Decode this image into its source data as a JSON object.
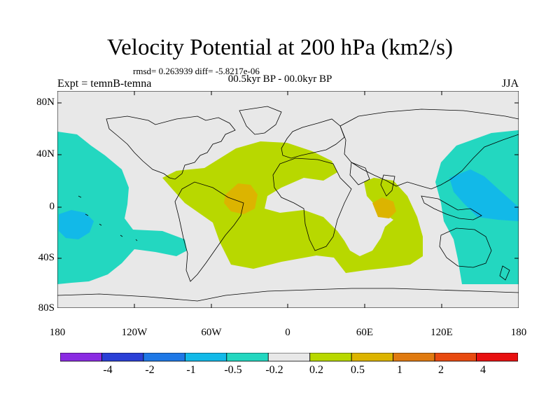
{
  "title": "Velocity Potential at 200 hPa (km2/s)",
  "stats": "rmsd= 0.263939 diff= -5.8217e-06",
  "experiment": "Expt = temnB-temna",
  "period": "00.5kyr BP - 00.0kyr BP",
  "season": "JJA",
  "lat_labels": [
    "80N",
    "40N",
    "0",
    "40S",
    "80S"
  ],
  "lon_labels": [
    "180",
    "120W",
    "60W",
    "0",
    "60E",
    "120E",
    "180"
  ],
  "colorbar": {
    "levels": [
      "-4",
      "-2",
      "-1",
      "-0.5",
      "-0.2",
      "0.2",
      "0.5",
      "1",
      "2",
      "4"
    ],
    "colors": [
      "#8a2be2",
      "#2a3fd6",
      "#1e78e6",
      "#12b9e8",
      "#23d7c0",
      "#e8e8e8",
      "#b8d800",
      "#dcb400",
      "#e07a10",
      "#e84a10",
      "#e81010"
    ]
  },
  "map_colors": {
    "background": "#e8e8e8",
    "neg_weak": "#23d7c0",
    "neg_mid": "#12b9e8",
    "pos_weak": "#b8d800",
    "pos_mid": "#dcb400",
    "coast": "#000000"
  }
}
